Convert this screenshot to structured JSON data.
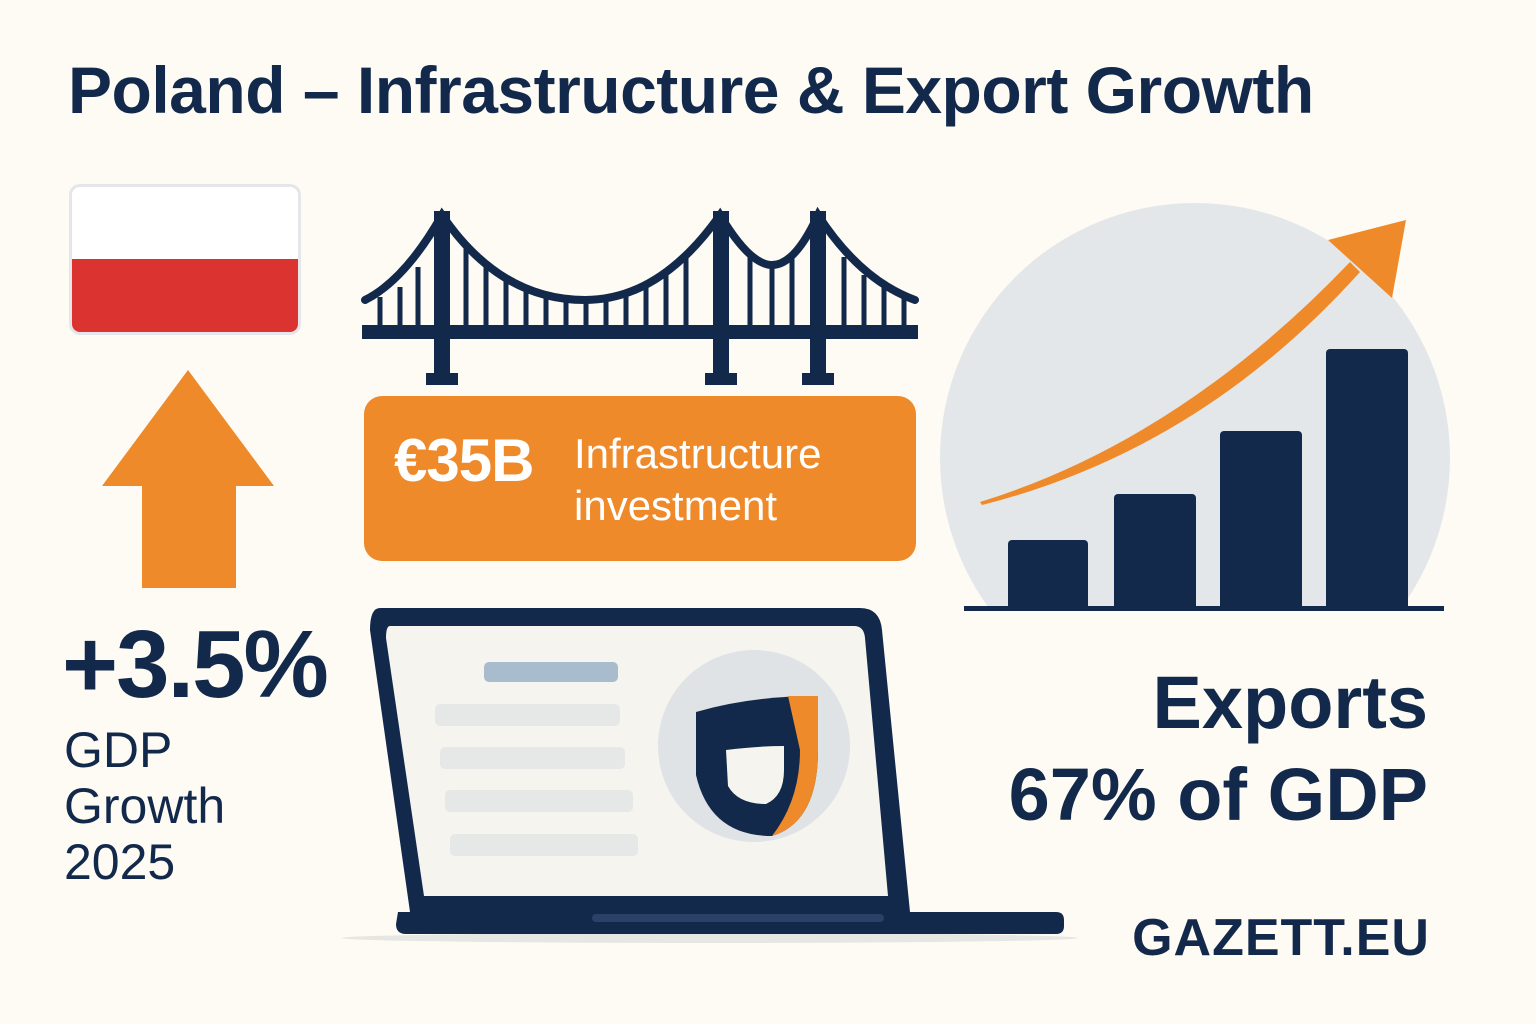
{
  "title": "Poland – Infrastructure & Export Growth",
  "investment": {
    "amount": "€35B",
    "label_line1": "Infrastructure",
    "label_line2": "investment"
  },
  "gdp": {
    "value": "+3.5%",
    "label_line1": "GDP",
    "label_line2": "Growth",
    "label_line3": "2025"
  },
  "exports": {
    "title": "Exports",
    "value": "67% of GDP"
  },
  "brand": "GAZETT.EU",
  "colors": {
    "navy": "#13294b",
    "orange": "#ef8a2b",
    "red": "#db3330",
    "background": "#fdfbf3",
    "circle": "#e4e7ea"
  },
  "icons": [
    "poland-flag-icon",
    "bridge-icon",
    "up-arrow-icon",
    "growth-bar-chart-icon",
    "trend-arrow-icon",
    "laptop-icon",
    "shield-icon"
  ]
}
